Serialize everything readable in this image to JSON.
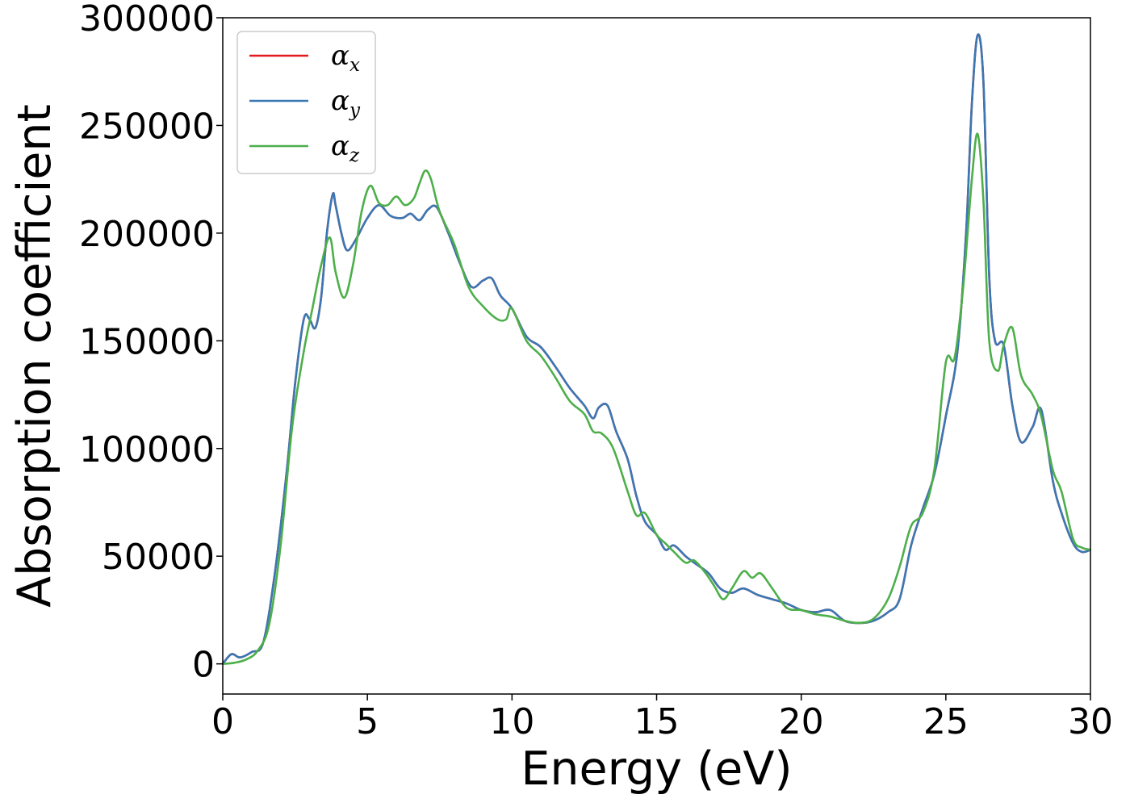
{
  "chart_data": {
    "type": "line",
    "title": "",
    "xlabel": "Energy (eV)",
    "ylabel": "Absorption coefficient",
    "xlim": [
      0,
      30
    ],
    "ylim": [
      -14000,
      300000
    ],
    "x_ticks": [
      "0",
      "5",
      "10",
      "15",
      "20",
      "25",
      "30"
    ],
    "y_ticks": [
      "0",
      "50000",
      "100000",
      "150000",
      "200000",
      "250000",
      "300000"
    ],
    "grid": false,
    "legend_position": "top-left",
    "series": [
      {
        "name": "α",
        "subscript": "x",
        "color": "#e41a1c",
        "x": [
          0,
          0.3,
          0.6,
          1.0,
          1.4,
          1.8,
          2.2,
          2.5,
          2.8,
          3.0,
          3.2,
          3.4,
          3.6,
          3.8,
          3.9,
          4.1,
          4.3,
          4.6,
          5.0,
          5.4,
          5.8,
          6.2,
          6.5,
          6.8,
          7.1,
          7.4,
          7.8,
          8.2,
          8.6,
          9.0,
          9.3,
          9.6,
          10.0,
          10.5,
          11.0,
          11.5,
          12.0,
          12.5,
          12.8,
          13.0,
          13.3,
          13.6,
          14.0,
          14.3,
          14.6,
          15.0,
          15.3,
          15.6,
          16.0,
          16.4,
          16.8,
          17.2,
          17.6,
          18.0,
          18.5,
          19.0,
          19.5,
          20.0,
          20.5,
          21.0,
          21.5,
          22.0,
          22.5,
          23.0,
          23.4,
          23.8,
          24.2,
          24.6,
          25.0,
          25.4,
          25.7,
          25.9,
          26.1,
          26.3,
          26.5,
          26.7,
          27.0,
          27.3,
          27.6,
          28.0,
          28.3,
          28.7,
          29.0,
          29.4,
          29.7,
          30.0
        ],
        "y": [
          0,
          4500,
          3000,
          5500,
          10000,
          42000,
          88000,
          130000,
          160000,
          160000,
          156000,
          170000,
          200000,
          218000,
          213000,
          200000,
          192000,
          197000,
          207000,
          213000,
          208000,
          207000,
          209000,
          206000,
          211000,
          212000,
          200000,
          186000,
          175000,
          178000,
          179000,
          171000,
          165000,
          152000,
          147000,
          138000,
          128000,
          120000,
          114000,
          119000,
          120000,
          108000,
          95000,
          78000,
          66000,
          60000,
          53000,
          55000,
          50000,
          46000,
          42000,
          35000,
          33000,
          35000,
          32000,
          30000,
          28000,
          25000,
          24000,
          25000,
          20000,
          19000,
          20000,
          24000,
          30000,
          55000,
          72000,
          88000,
          115000,
          145000,
          200000,
          260000,
          292000,
          270000,
          180000,
          150000,
          148000,
          120000,
          103000,
          110000,
          118000,
          85000,
          70000,
          56000,
          52000,
          53000
        ]
      },
      {
        "name": "α",
        "subscript": "y",
        "color": "#3a78b5",
        "x": [
          0,
          0.3,
          0.6,
          1.0,
          1.4,
          1.8,
          2.2,
          2.5,
          2.8,
          3.0,
          3.2,
          3.4,
          3.6,
          3.8,
          3.9,
          4.1,
          4.3,
          4.6,
          5.0,
          5.4,
          5.8,
          6.2,
          6.5,
          6.8,
          7.1,
          7.4,
          7.8,
          8.2,
          8.6,
          9.0,
          9.3,
          9.6,
          10.0,
          10.5,
          11.0,
          11.5,
          12.0,
          12.5,
          12.8,
          13.0,
          13.3,
          13.6,
          14.0,
          14.3,
          14.6,
          15.0,
          15.3,
          15.6,
          16.0,
          16.4,
          16.8,
          17.2,
          17.6,
          18.0,
          18.5,
          19.0,
          19.5,
          20.0,
          20.5,
          21.0,
          21.5,
          22.0,
          22.5,
          23.0,
          23.4,
          23.8,
          24.2,
          24.6,
          25.0,
          25.4,
          25.7,
          25.9,
          26.1,
          26.3,
          26.5,
          26.7,
          27.0,
          27.3,
          27.6,
          28.0,
          28.3,
          28.7,
          29.0,
          29.4,
          29.7,
          30.0
        ],
        "y": [
          0,
          4500,
          3000,
          5500,
          10000,
          42000,
          88000,
          130000,
          160000,
          160000,
          156000,
          170000,
          200000,
          218000,
          213000,
          200000,
          192000,
          197000,
          207000,
          213000,
          208000,
          207000,
          209000,
          206000,
          211000,
          212000,
          200000,
          186000,
          175000,
          178000,
          179000,
          171000,
          165000,
          152000,
          147000,
          138000,
          128000,
          120000,
          114000,
          119000,
          120000,
          108000,
          95000,
          78000,
          66000,
          60000,
          53000,
          55000,
          50000,
          46000,
          42000,
          35000,
          33000,
          35000,
          32000,
          30000,
          28000,
          25000,
          24000,
          25000,
          20000,
          19000,
          20000,
          24000,
          30000,
          55000,
          72000,
          88000,
          115000,
          145000,
          200000,
          260000,
          292000,
          270000,
          180000,
          150000,
          148000,
          120000,
          103000,
          110000,
          118000,
          85000,
          70000,
          56000,
          52000,
          53000
        ]
      },
      {
        "name": "α",
        "subscript": "z",
        "color": "#4daf4a",
        "x": [
          0,
          0.4,
          0.8,
          1.2,
          1.6,
          2.0,
          2.4,
          2.8,
          3.1,
          3.4,
          3.7,
          3.9,
          4.2,
          4.5,
          4.8,
          5.1,
          5.4,
          5.7,
          6.0,
          6.3,
          6.6,
          6.8,
          7.0,
          7.2,
          7.5,
          8.0,
          8.5,
          9.0,
          9.5,
          9.8,
          10.0,
          10.5,
          11.0,
          11.5,
          12.0,
          12.5,
          12.8,
          13.1,
          13.5,
          14.0,
          14.3,
          14.6,
          15.0,
          15.3,
          15.6,
          16.0,
          16.3,
          16.7,
          17.0,
          17.3,
          17.6,
          18.0,
          18.3,
          18.6,
          19.0,
          19.5,
          20.0,
          20.5,
          21.0,
          21.5,
          22.0,
          22.5,
          23.0,
          23.4,
          23.8,
          24.2,
          24.6,
          25.0,
          25.3,
          25.6,
          25.9,
          26.1,
          26.3,
          26.5,
          26.8,
          27.0,
          27.3,
          27.6,
          28.0,
          28.3,
          28.7,
          29.0,
          29.4,
          29.7,
          30.0
        ],
        "y": [
          0,
          500,
          2000,
          6000,
          18000,
          55000,
          110000,
          145000,
          165000,
          185000,
          198000,
          182000,
          170000,
          185000,
          210000,
          222000,
          214000,
          213000,
          217000,
          213000,
          216000,
          223000,
          229000,
          225000,
          210000,
          195000,
          175000,
          166000,
          160000,
          160000,
          165000,
          150000,
          143000,
          133000,
          122000,
          116000,
          108000,
          107000,
          100000,
          80000,
          69000,
          70000,
          60000,
          56000,
          52000,
          47000,
          48000,
          42000,
          36000,
          30000,
          35000,
          43000,
          40000,
          42000,
          35000,
          26000,
          25000,
          23000,
          22000,
          20000,
          19000,
          21000,
          30000,
          45000,
          64000,
          70000,
          90000,
          140000,
          142000,
          175000,
          225000,
          246000,
          215000,
          150000,
          136000,
          148000,
          156000,
          134000,
          125000,
          115000,
          90000,
          80000,
          58000,
          54000,
          53000
        ]
      }
    ]
  }
}
